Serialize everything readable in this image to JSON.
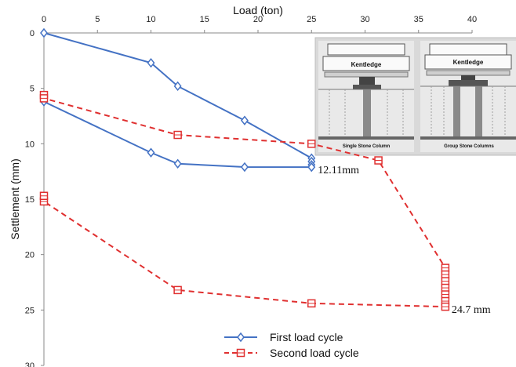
{
  "chart_data": {
    "type": "line",
    "xlabel": "Load (ton)",
    "ylabel": "Settlement (mm)",
    "xlim": [
      0,
      40
    ],
    "ylim": [
      0,
      30
    ],
    "y_inverted": true,
    "x_axis_position": "top",
    "xticks": [
      0,
      5,
      10,
      15,
      20,
      25,
      30,
      35,
      40
    ],
    "yticks": [
      0,
      5,
      10,
      15,
      20,
      25,
      30
    ],
    "grid": false,
    "legend_placement": "bottom-center",
    "series": [
      {
        "name": "First load cycle",
        "color": "#4472C4",
        "line_style": "solid",
        "marker": "diamond",
        "points": [
          [
            0,
            0
          ],
          [
            10,
            2.7
          ],
          [
            12.5,
            4.8
          ],
          [
            18.75,
            7.9
          ],
          [
            25,
            11.3
          ],
          [
            25,
            11.6
          ],
          [
            25,
            11.9
          ],
          [
            25,
            12.11
          ],
          [
            18.75,
            12.1
          ],
          [
            12.5,
            11.8
          ],
          [
            10,
            10.8
          ],
          [
            0,
            6.2
          ]
        ]
      },
      {
        "name": "Second load cycle",
        "color": "#E03030",
        "line_style": "dashed",
        "marker": "square",
        "points": [
          [
            0,
            5.6
          ],
          [
            0,
            5.9
          ],
          [
            12.5,
            9.2
          ],
          [
            25,
            10.0
          ],
          [
            31.25,
            11.5
          ],
          [
            37.5,
            21.2
          ],
          [
            37.5,
            21.8
          ],
          [
            37.5,
            22.4
          ],
          [
            37.5,
            23.0
          ],
          [
            37.5,
            23.6
          ],
          [
            37.5,
            24.2
          ],
          [
            37.5,
            24.7
          ],
          [
            25,
            24.4
          ],
          [
            12.5,
            23.2
          ],
          [
            0,
            15.2
          ],
          [
            0,
            14.7
          ]
        ]
      }
    ],
    "annotations": [
      {
        "text": "12.11mm",
        "x": 25,
        "y": 12.11
      },
      {
        "text": "24.7  mm",
        "x": 37.5,
        "y": 24.7
      }
    ]
  },
  "inset": {
    "left_label": "Kentledge",
    "right_label": "Kentledge",
    "left_caption": "Single Stone Column",
    "right_caption": "Group Stone Columns"
  }
}
